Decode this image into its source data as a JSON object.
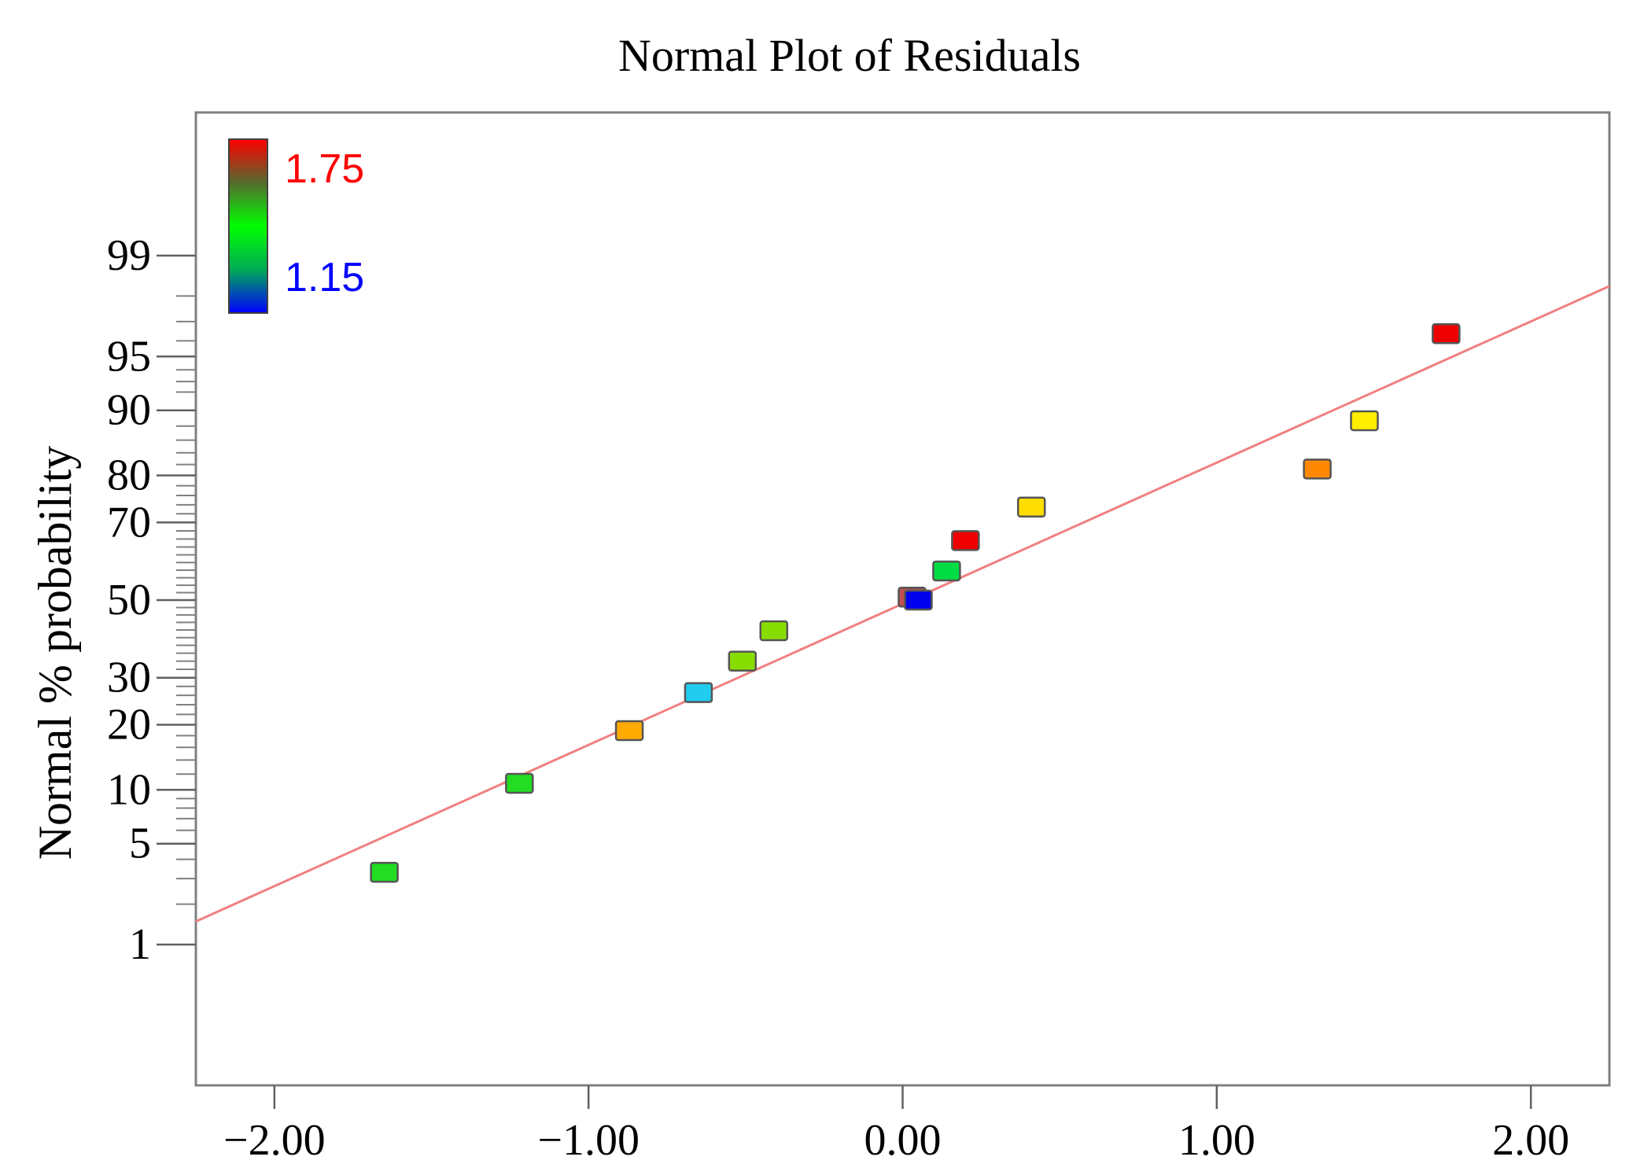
{
  "chart_data": {
    "type": "scatter",
    "title": "Normal Plot of Residuals",
    "xlabel": "",
    "ylabel": "Normal % probability",
    "xlim": [
      -2.25,
      2.25
    ],
    "x_ticks": [
      -2.0,
      -1.0,
      0.0,
      1.0,
      2.0
    ],
    "x_tick_labels": [
      "−2.00",
      "−1.00",
      "0.00",
      "1.00",
      "2.00"
    ],
    "y_ticks": [
      1,
      5,
      10,
      20,
      30,
      50,
      70,
      80,
      90,
      95,
      99
    ],
    "y_tick_labels": [
      "1",
      "5",
      "10",
      "20",
      "30",
      "50",
      "70",
      "80",
      "90",
      "95",
      "99"
    ],
    "color_scale": {
      "label_high": "1.75",
      "label_low": "1.15",
      "color_high": "#ff0000",
      "color_low": "#0000ff",
      "high_text_color": "#ff0000",
      "low_text_color": "#0000ff"
    },
    "reference_line": {
      "color": "#f08080",
      "points": [
        {
          "x": -2.25,
          "p": 1.5
        },
        {
          "x": 2.25,
          "p": 98.3
        }
      ]
    },
    "points": [
      {
        "x": -1.65,
        "p": 3.3,
        "color": "#22dd22"
      },
      {
        "x": -1.22,
        "p": 10.8,
        "color": "#22dd22"
      },
      {
        "x": -0.87,
        "p": 18.9,
        "color": "#ffaa00"
      },
      {
        "x": -0.65,
        "p": 26.6,
        "color": "#22ccee"
      },
      {
        "x": -0.51,
        "p": 34.0,
        "color": "#88dd00"
      },
      {
        "x": -0.41,
        "p": 41.8,
        "color": "#88dd00"
      },
      {
        "x": 0.03,
        "p": 50.8,
        "color": "#c05050"
      },
      {
        "x": 0.05,
        "p": 50.0,
        "color": "#0000ee"
      },
      {
        "x": 0.14,
        "p": 57.8,
        "color": "#00dd44"
      },
      {
        "x": 0.2,
        "p": 65.6,
        "color": "#ee0000"
      },
      {
        "x": 0.41,
        "p": 73.5,
        "color": "#ffdd00"
      },
      {
        "x": 1.32,
        "p": 81.2,
        "color": "#ff8800"
      },
      {
        "x": 1.47,
        "p": 88.7,
        "color": "#ffee00"
      },
      {
        "x": 1.73,
        "p": 96.4,
        "color": "#ee0000"
      }
    ]
  }
}
